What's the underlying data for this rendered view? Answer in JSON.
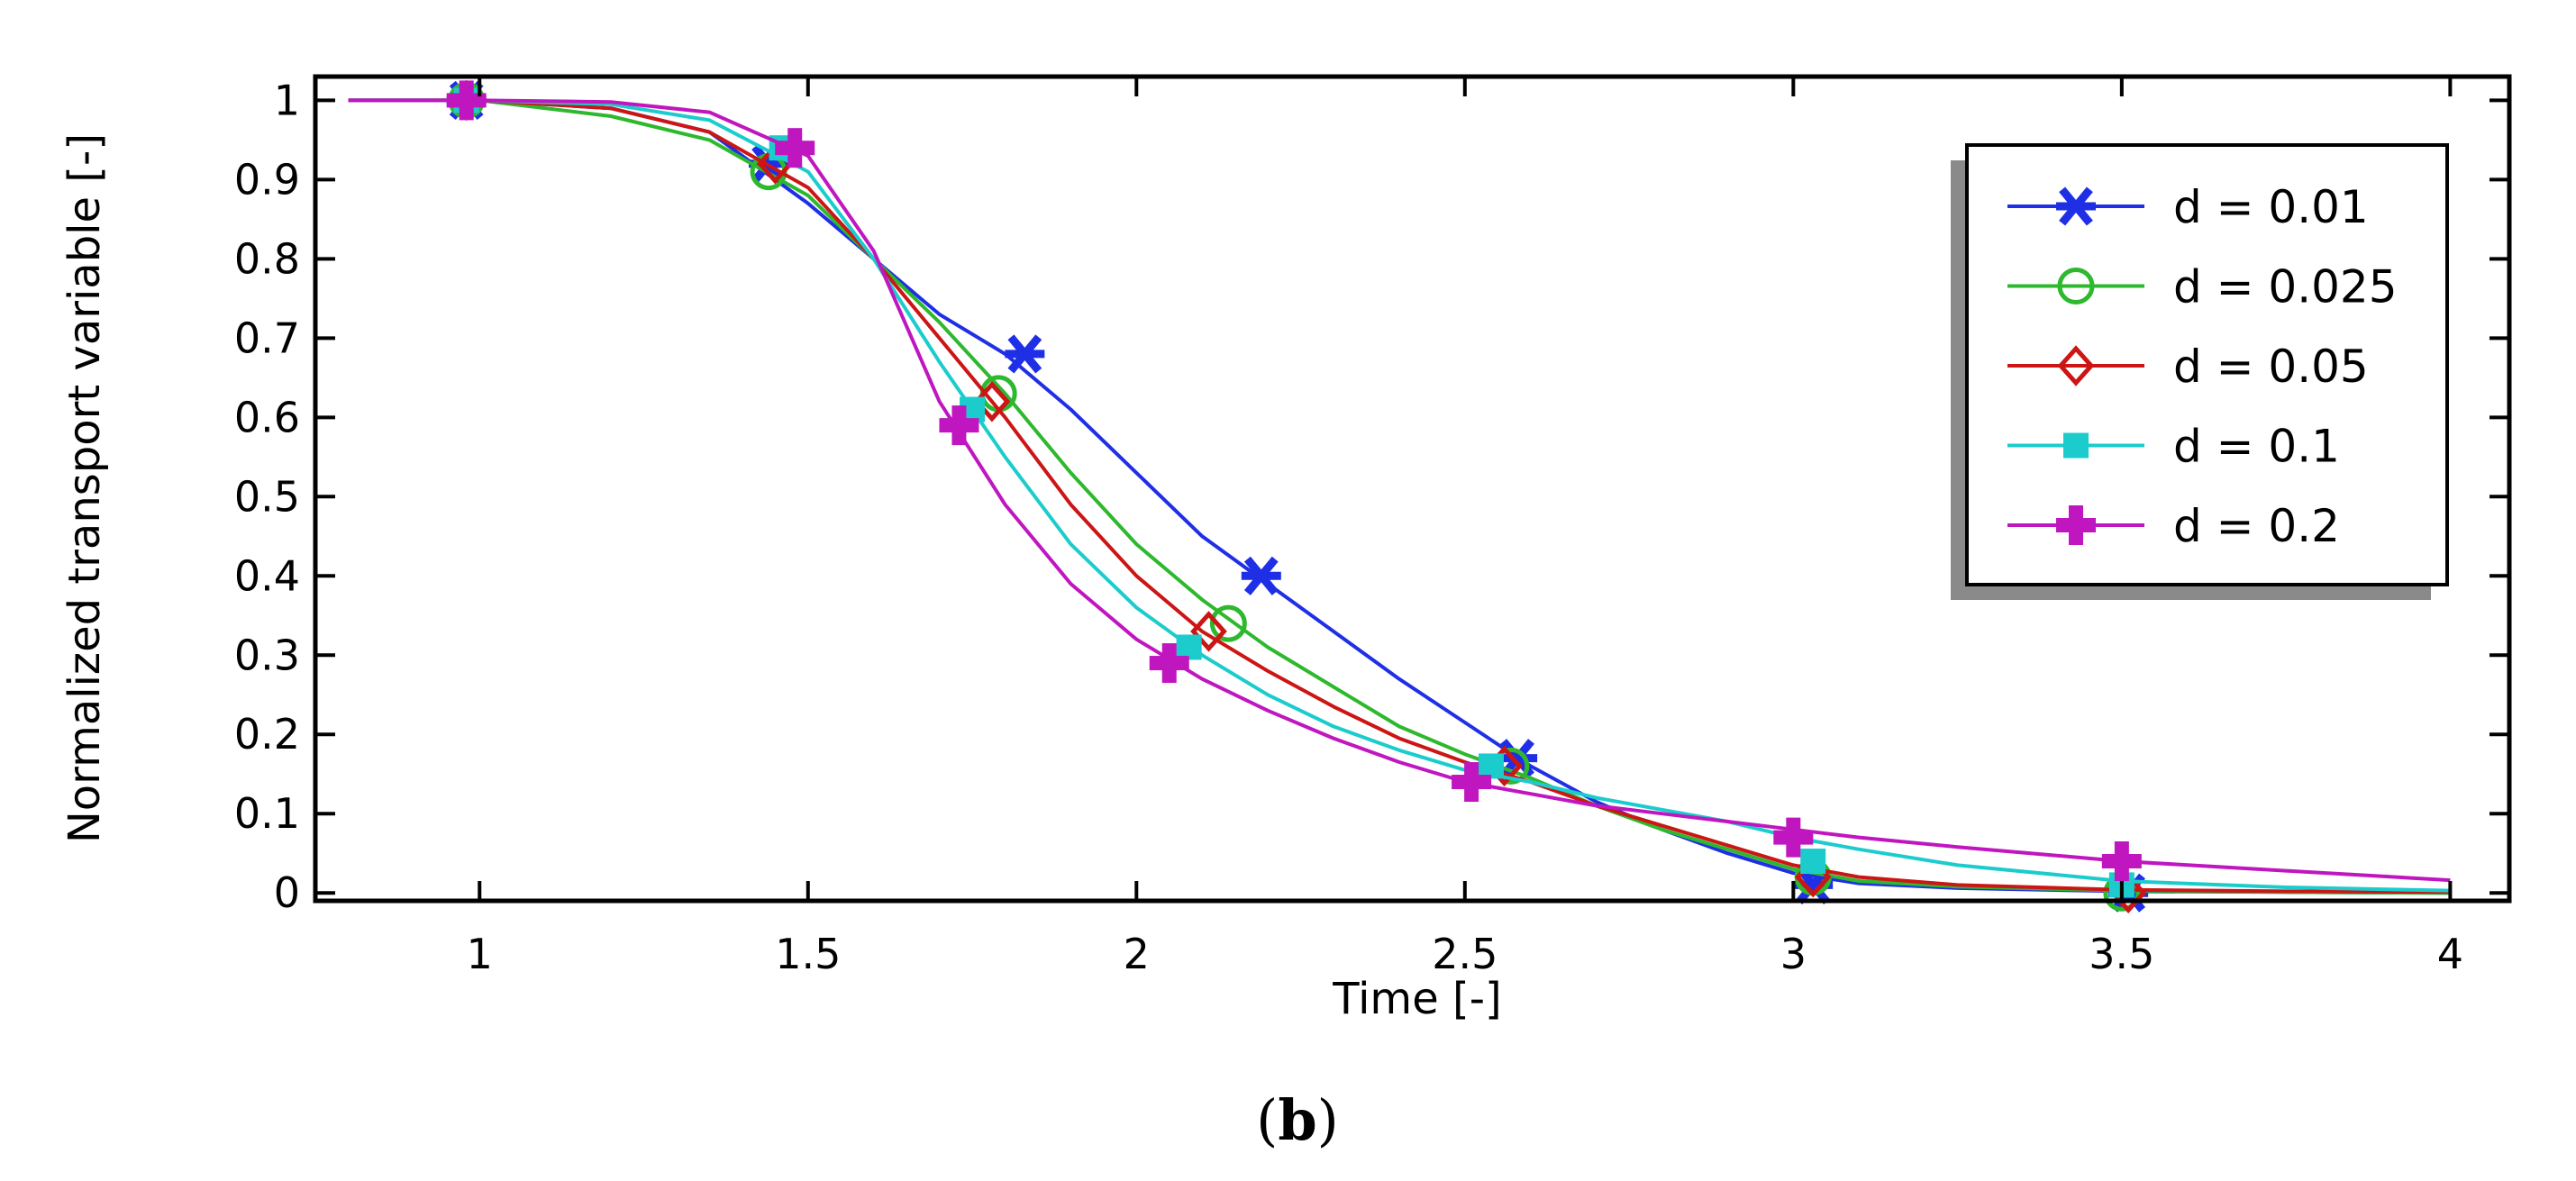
{
  "chart_data": {
    "type": "line",
    "title": "",
    "caption": "(b)",
    "caption_open": "(",
    "caption_letter": "b",
    "caption_close": ")",
    "xlabel": "Time [-]",
    "ylabel": "Normalized transport variable [-]",
    "xlim": [
      0.75,
      4.09
    ],
    "ylim": [
      -0.01,
      1.03
    ],
    "xticks": [
      1,
      1.5,
      2,
      2.5,
      3,
      3.5,
      4
    ],
    "xtick_labels": [
      "1",
      "1.5",
      "2",
      "2.5",
      "3",
      "3.5",
      "4"
    ],
    "yticks": [
      0,
      0.1,
      0.2,
      0.3,
      0.4,
      0.5,
      0.6,
      0.7,
      0.8,
      0.9,
      1
    ],
    "ytick_labels": [
      "0",
      "0.1",
      "0.2",
      "0.3",
      "0.4",
      "0.5",
      "0.6",
      "0.7",
      "0.8",
      "0.9",
      "1"
    ],
    "grid": false,
    "legend_position": "top-right",
    "series": [
      {
        "name": "d = 0.01",
        "color": "#1f2fe6",
        "marker": "asterisk",
        "x": [
          0.8,
          1.0,
          1.2,
          1.35,
          1.5,
          1.6,
          1.7,
          1.8,
          1.9,
          2.0,
          2.1,
          2.2,
          2.3,
          2.4,
          2.5,
          2.6,
          2.7,
          2.8,
          2.9,
          3.0,
          3.1,
          3.25,
          3.5,
          3.75,
          4.0
        ],
        "y": [
          1.0,
          1.0,
          0.99,
          0.96,
          0.87,
          0.8,
          0.73,
          0.68,
          0.61,
          0.53,
          0.45,
          0.39,
          0.33,
          0.27,
          0.215,
          0.16,
          0.115,
          0.08,
          0.05,
          0.025,
          0.012,
          0.006,
          0.002,
          0.001,
          0.0
        ],
        "markers_x": [
          0.98,
          1.44,
          1.83,
          2.19,
          2.58,
          3.03,
          3.51
        ],
        "markers_y": [
          1.0,
          0.92,
          0.68,
          0.4,
          0.17,
          0.01,
          0.0
        ]
      },
      {
        "name": "d = 0.025",
        "color": "#2db82d",
        "marker": "circle",
        "x": [
          0.8,
          1.0,
          1.2,
          1.35,
          1.5,
          1.6,
          1.7,
          1.8,
          1.9,
          2.0,
          2.1,
          2.2,
          2.3,
          2.4,
          2.5,
          2.6,
          2.7,
          2.8,
          2.9,
          3.0,
          3.1,
          3.25,
          3.5,
          3.75,
          4.0
        ],
        "y": [
          1.0,
          1.0,
          0.98,
          0.95,
          0.88,
          0.8,
          0.72,
          0.63,
          0.53,
          0.44,
          0.37,
          0.31,
          0.26,
          0.21,
          0.175,
          0.145,
          0.11,
          0.08,
          0.055,
          0.03,
          0.015,
          0.008,
          0.003,
          0.001,
          0.0
        ],
        "markers_x": [
          0.98,
          1.44,
          1.79,
          2.14,
          2.57,
          3.03,
          3.5
        ],
        "markers_y": [
          1.0,
          0.91,
          0.63,
          0.34,
          0.16,
          0.02,
          0.0
        ]
      },
      {
        "name": "d = 0.05",
        "color": "#cc1515",
        "marker": "diamond",
        "x": [
          0.8,
          1.0,
          1.2,
          1.35,
          1.5,
          1.6,
          1.7,
          1.8,
          1.9,
          2.0,
          2.1,
          2.2,
          2.3,
          2.4,
          2.5,
          2.6,
          2.7,
          2.8,
          2.9,
          3.0,
          3.1,
          3.25,
          3.5,
          3.75,
          4.0
        ],
        "y": [
          1.0,
          1.0,
          0.99,
          0.96,
          0.89,
          0.8,
          0.7,
          0.6,
          0.49,
          0.4,
          0.33,
          0.28,
          0.235,
          0.195,
          0.165,
          0.14,
          0.11,
          0.085,
          0.06,
          0.035,
          0.02,
          0.01,
          0.004,
          0.002,
          0.001
        ],
        "markers_x": [
          0.98,
          1.45,
          1.78,
          2.11,
          2.56,
          3.03,
          3.51
        ],
        "markers_y": [
          1.0,
          0.92,
          0.62,
          0.33,
          0.16,
          0.02,
          0.0
        ]
      },
      {
        "name": "d = 0.1",
        "color": "#1ccccc",
        "marker": "square",
        "x": [
          0.8,
          1.0,
          1.2,
          1.35,
          1.5,
          1.6,
          1.7,
          1.8,
          1.9,
          2.0,
          2.1,
          2.2,
          2.3,
          2.4,
          2.5,
          2.6,
          2.7,
          2.8,
          2.9,
          3.0,
          3.1,
          3.25,
          3.5,
          3.75,
          4.0
        ],
        "y": [
          1.0,
          1.0,
          0.995,
          0.975,
          0.91,
          0.8,
          0.67,
          0.55,
          0.44,
          0.36,
          0.3,
          0.25,
          0.21,
          0.18,
          0.155,
          0.14,
          0.12,
          0.105,
          0.09,
          0.07,
          0.055,
          0.035,
          0.015,
          0.007,
          0.003
        ],
        "markers_x": [
          0.98,
          1.46,
          1.75,
          2.08,
          2.54,
          3.03,
          3.5
        ],
        "markers_y": [
          1.0,
          0.94,
          0.61,
          0.31,
          0.16,
          0.04,
          0.01
        ]
      },
      {
        "name": "d = 0.2",
        "color": "#c016c0",
        "marker": "cross",
        "x": [
          0.8,
          1.0,
          1.2,
          1.35,
          1.5,
          1.6,
          1.7,
          1.8,
          1.9,
          2.0,
          2.1,
          2.2,
          2.3,
          2.4,
          2.5,
          2.6,
          2.7,
          2.8,
          2.9,
          3.0,
          3.1,
          3.25,
          3.5,
          3.75,
          4.0
        ],
        "y": [
          1.0,
          1.0,
          0.998,
          0.985,
          0.93,
          0.81,
          0.62,
          0.49,
          0.39,
          0.32,
          0.27,
          0.23,
          0.195,
          0.165,
          0.14,
          0.125,
          0.11,
          0.1,
          0.09,
          0.08,
          0.07,
          0.058,
          0.04,
          0.028,
          0.016
        ],
        "markers_x": [
          0.98,
          1.48,
          1.73,
          2.05,
          2.51,
          3.0,
          3.5
        ],
        "markers_y": [
          1.0,
          0.94,
          0.59,
          0.29,
          0.14,
          0.07,
          0.04
        ]
      }
    ]
  }
}
